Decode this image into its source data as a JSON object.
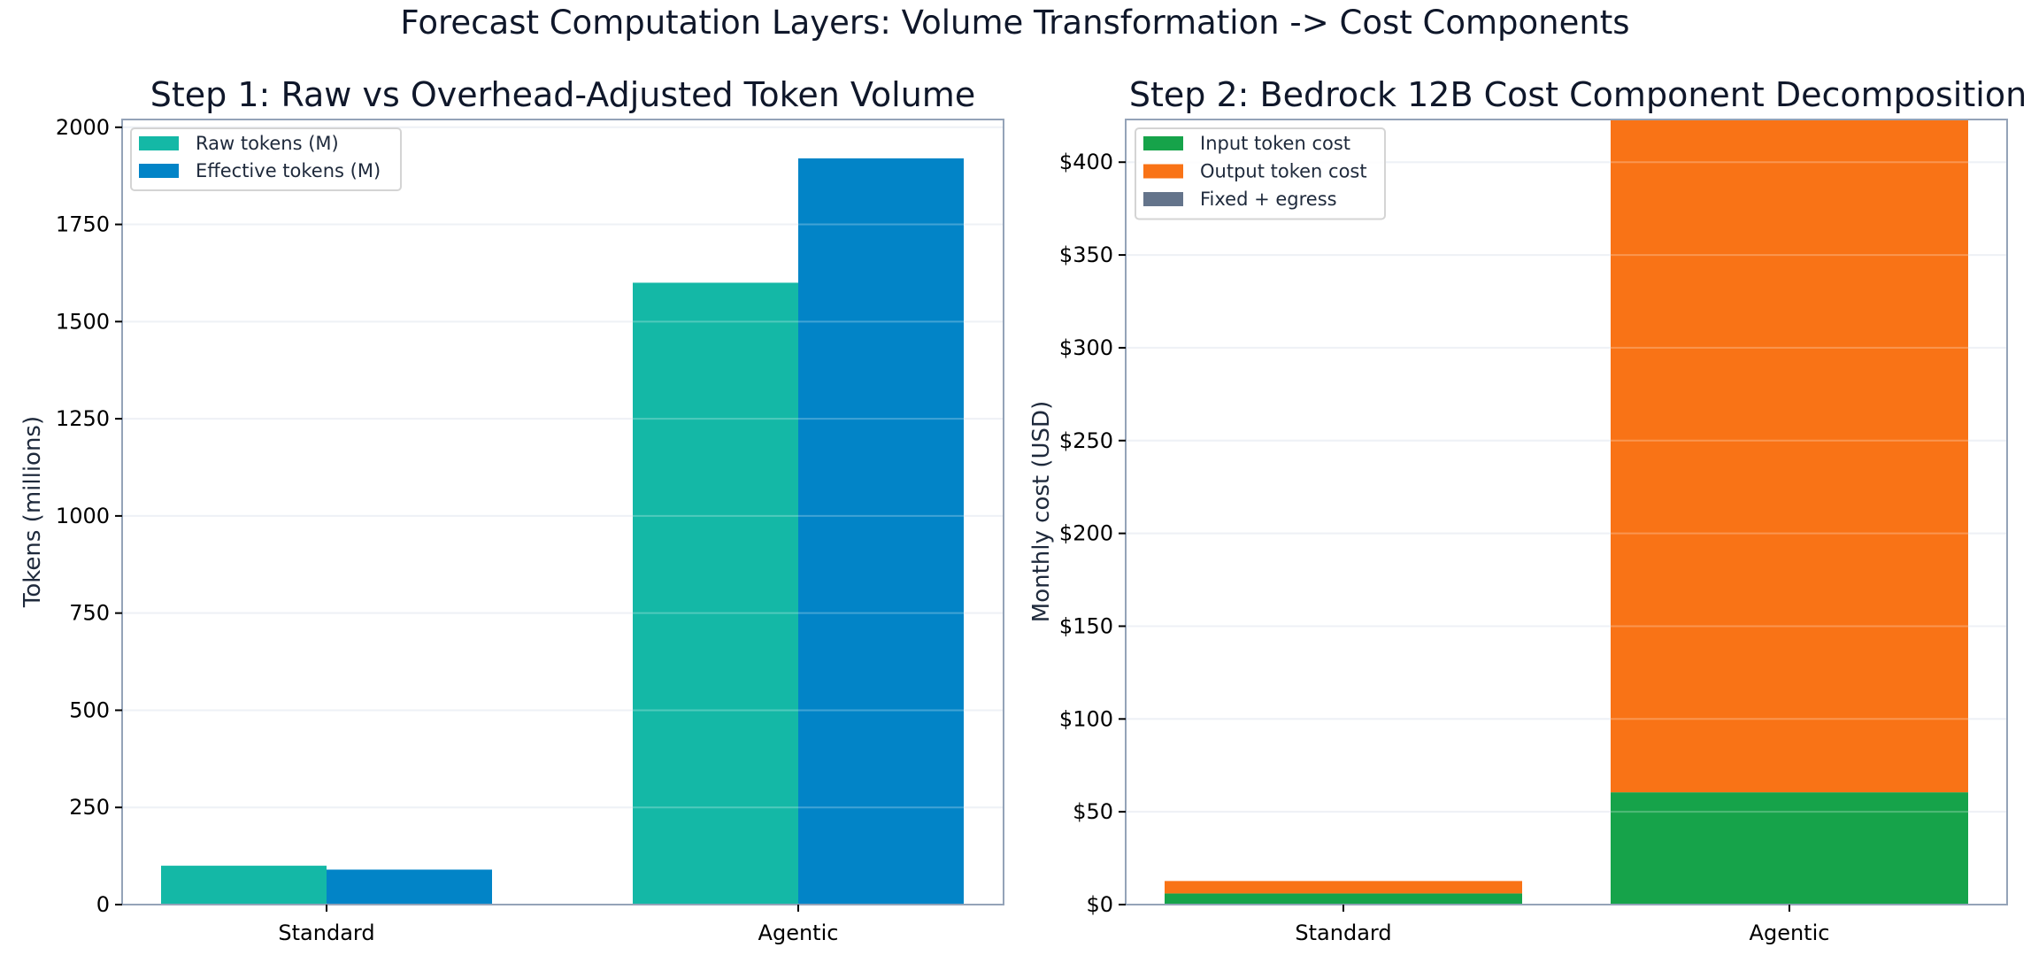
{
  "suptitle": "Forecast Computation Layers: Volume Transformation -> Cost Components",
  "chart_data": [
    {
      "type": "bar",
      "title": "Step 1: Raw vs Overhead-Adjusted Token Volume",
      "xlabel": "",
      "ylabel": "Tokens (millions)",
      "categories": [
        "Standard",
        "Agentic"
      ],
      "series": [
        {
          "name": "Raw tokens (M)",
          "color": "#14b8a6",
          "values": [
            100,
            1600
          ]
        },
        {
          "name": "Effective tokens (M)",
          "color": "#0284c7",
          "values": [
            90,
            1920
          ]
        }
      ],
      "ylim": [
        0,
        2020
      ],
      "yticks": [
        0,
        250,
        500,
        750,
        1000,
        1250,
        1500,
        1750,
        2000
      ],
      "ytick_labels": [
        "0",
        "250",
        "500",
        "750",
        "1000",
        "1250",
        "1500",
        "1750",
        "2000"
      ],
      "grid": true,
      "legend_position": "upper left"
    },
    {
      "type": "bar",
      "stacked": true,
      "title": "Step 2: Bedrock 12B Cost Component Decomposition",
      "xlabel": "",
      "ylabel": "Monthly cost (USD)",
      "categories": [
        "Standard",
        "Agentic"
      ],
      "series": [
        {
          "name": "Input token cost",
          "color": "#16a34a",
          "values": [
            6.0,
            60.5
          ]
        },
        {
          "name": "Output token cost",
          "color": "#f97316",
          "values": [
            6.7,
            362.5
          ]
        },
        {
          "name": "Fixed + egress",
          "color": "#64748b",
          "values": [
            0,
            0
          ]
        }
      ],
      "ylim": [
        0,
        423
      ],
      "yticks": [
        0,
        50,
        100,
        150,
        200,
        250,
        300,
        350,
        400
      ],
      "ytick_labels": [
        "$0",
        "$50",
        "$100",
        "$150",
        "$200",
        "$250",
        "$300",
        "$350",
        "$400"
      ],
      "grid": true,
      "legend_position": "upper left",
      "note": "Agentic stack exceeds visible y-range (clipped at top)"
    }
  ]
}
